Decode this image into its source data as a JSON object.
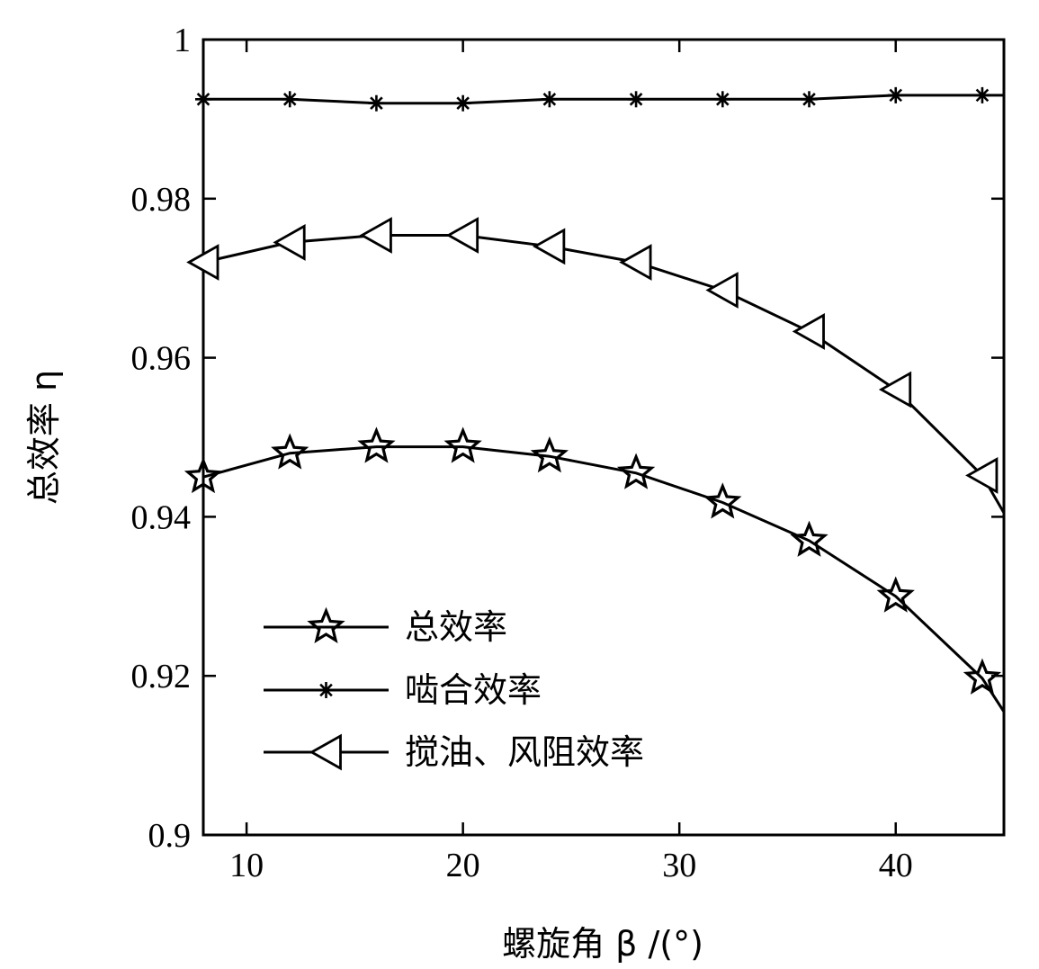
{
  "chart_data": {
    "type": "line",
    "xlabel": "螺旋角 β /(°)",
    "ylabel": "总效率 η",
    "xlim": [
      8,
      45
    ],
    "ylim": [
      0.9,
      1.0
    ],
    "xticks": [
      10,
      20,
      30,
      40
    ],
    "xtick_labels": [
      "10",
      "20",
      "30",
      "40"
    ],
    "yticks": [
      0.9,
      0.92,
      0.94,
      0.96,
      0.98,
      1.0
    ],
    "ytick_labels": [
      "0.9",
      "0.92",
      "0.94",
      "0.96",
      "0.98",
      "1"
    ],
    "grid": false,
    "legend_position": "bottom-left",
    "series": [
      {
        "name": "总效率",
        "marker": "star",
        "x": [
          8,
          12,
          16,
          20,
          24,
          28,
          32,
          36,
          40,
          44,
          45
        ],
        "y": [
          0.945,
          0.948,
          0.9488,
          0.9488,
          0.9476,
          0.9455,
          0.9418,
          0.937,
          0.93,
          0.9197,
          0.9155
        ],
        "markers_on": [
          true,
          true,
          true,
          true,
          true,
          true,
          true,
          true,
          true,
          true,
          false
        ]
      },
      {
        "name": "啮合效率",
        "marker": "asterisk",
        "x": [
          8,
          12,
          16,
          20,
          24,
          28,
          32,
          36,
          40,
          44,
          45
        ],
        "y": [
          0.9925,
          0.9925,
          0.992,
          0.992,
          0.9925,
          0.9925,
          0.9925,
          0.9925,
          0.993,
          0.993,
          0.993
        ],
        "markers_on": [
          true,
          true,
          true,
          true,
          true,
          true,
          true,
          true,
          true,
          true,
          false
        ]
      },
      {
        "name": "搅油、风阻效率",
        "marker": "triangle-left",
        "x": [
          8,
          12,
          16,
          20,
          24,
          28,
          32,
          36,
          40,
          44,
          45
        ],
        "y": [
          0.972,
          0.9745,
          0.9754,
          0.9754,
          0.974,
          0.972,
          0.9685,
          0.9633,
          0.956,
          0.9452,
          0.9405
        ],
        "markers_on": [
          true,
          true,
          true,
          true,
          true,
          true,
          true,
          true,
          true,
          true,
          false
        ]
      }
    ]
  }
}
